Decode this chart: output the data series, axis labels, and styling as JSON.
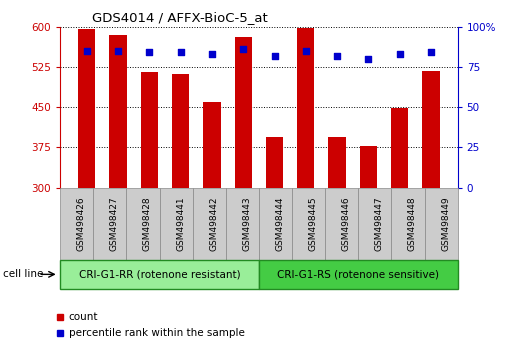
{
  "title": "GDS4014 / AFFX-BioC-5_at",
  "samples": [
    "GSM498426",
    "GSM498427",
    "GSM498428",
    "GSM498441",
    "GSM498442",
    "GSM498443",
    "GSM498444",
    "GSM498445",
    "GSM498446",
    "GSM498447",
    "GSM498448",
    "GSM498449"
  ],
  "counts": [
    595,
    585,
    515,
    512,
    460,
    580,
    395,
    598,
    395,
    378,
    448,
    518
  ],
  "percentile_ranks": [
    85,
    85,
    84,
    84,
    83,
    86,
    82,
    85,
    82,
    80,
    83,
    84
  ],
  "bar_color": "#cc0000",
  "dot_color": "#0000cc",
  "ymin": 300,
  "ymax": 600,
  "yticks": [
    300,
    375,
    450,
    525,
    600
  ],
  "y2min": 0,
  "y2max": 100,
  "y2ticks": [
    0,
    25,
    50,
    75,
    100
  ],
  "group1_label": "CRI-G1-RR (rotenone resistant)",
  "group2_label": "CRI-G1-RS (rotenone sensitive)",
  "group1_count": 6,
  "group2_count": 6,
  "cell_line_label": "cell line",
  "legend_count_label": "count",
  "legend_pct_label": "percentile rank within the sample",
  "group1_color": "#99ee99",
  "group2_color": "#44cc44",
  "tick_area_color": "#cccccc",
  "background_color": "#ffffff"
}
